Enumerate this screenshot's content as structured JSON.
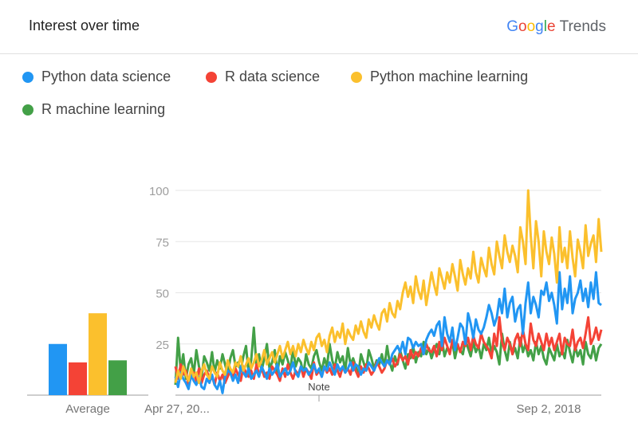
{
  "header": {
    "title": "Interest over time",
    "brand_letters": [
      {
        "ch": "G",
        "color": "#4285F4"
      },
      {
        "ch": "o",
        "color": "#EA4335"
      },
      {
        "ch": "o",
        "color": "#FBBC05"
      },
      {
        "ch": "g",
        "color": "#4285F4"
      },
      {
        "ch": "l",
        "color": "#34A853"
      },
      {
        "ch": "e",
        "color": "#EA4335"
      }
    ],
    "product": "Trends"
  },
  "average_label": "Average",
  "note_label": "Note",
  "chart_data": {
    "type": "line",
    "ylim": [
      0,
      100
    ],
    "yticks": [
      25,
      50,
      75,
      100
    ],
    "x_tick_labels": [
      "Apr 27, 20...",
      "Sep 2, 2018"
    ],
    "grid": true,
    "legend_position": "top",
    "series": [
      {
        "name": "Python data science",
        "color": "#2196F3",
        "average": 25,
        "values": [
          9,
          4,
          11,
          8,
          6,
          3,
          10,
          7,
          5,
          9,
          4,
          3,
          8,
          6,
          10,
          5,
          3,
          7,
          1,
          9,
          12,
          11,
          7,
          10,
          6,
          14,
          11,
          9,
          13,
          8,
          10,
          12,
          9,
          14,
          11,
          8,
          13,
          10,
          12,
          15,
          9,
          11,
          13,
          10,
          12,
          16,
          11,
          9,
          14,
          12,
          13,
          10,
          12,
          15,
          11,
          13,
          9,
          14,
          12,
          16,
          13,
          10,
          15,
          12,
          14,
          11,
          13,
          16,
          12,
          15,
          14,
          10,
          13,
          12,
          16,
          14,
          12,
          15,
          18,
          16,
          14,
          17,
          15,
          20,
          22,
          24,
          21,
          26,
          20,
          28,
          27,
          23,
          26,
          24,
          25,
          20,
          27,
          30,
          32,
          29,
          34,
          36,
          24,
          38,
          30,
          26,
          33,
          22,
          28,
          35,
          33,
          25,
          40,
          35,
          28,
          37,
          32,
          30,
          33,
          38,
          44,
          40,
          34,
          38,
          47,
          40,
          52,
          38,
          45,
          48,
          36,
          42,
          44,
          30,
          45,
          55,
          40,
          48,
          44,
          38,
          51,
          49,
          55,
          46,
          50,
          44,
          35,
          60,
          42,
          52,
          45,
          58,
          40,
          47,
          50,
          56,
          46,
          52,
          43,
          55,
          47,
          60,
          45,
          44
        ]
      },
      {
        "name": "R data science",
        "color": "#F44336",
        "average": 16,
        "values": [
          14,
          8,
          15,
          10,
          12,
          5,
          9,
          11,
          7,
          13,
          6,
          10,
          12,
          8,
          9,
          5,
          11,
          7,
          10,
          6,
          9,
          12,
          8,
          13,
          10,
          7,
          14,
          11,
          9,
          12,
          8,
          15,
          10,
          13,
          9,
          11,
          8,
          14,
          12,
          10,
          7,
          13,
          9,
          15,
          11,
          8,
          12,
          10,
          14,
          9,
          13,
          11,
          8,
          16,
          10,
          12,
          9,
          14,
          11,
          13,
          10,
          15,
          12,
          9,
          14,
          11,
          13,
          10,
          16,
          12,
          9,
          14,
          11,
          15,
          13,
          10,
          12,
          16,
          14,
          11,
          13,
          17,
          15,
          18,
          14,
          16,
          20,
          17,
          19,
          15,
          22,
          18,
          21,
          19,
          23,
          20,
          25,
          22,
          21,
          24,
          19,
          26,
          22,
          28,
          24,
          20,
          27,
          23,
          25,
          21,
          26,
          24,
          28,
          22,
          29,
          25,
          23,
          30,
          26,
          24,
          22,
          18,
          30,
          24,
          38,
          26,
          22,
          28,
          25,
          20,
          27,
          30,
          24,
          32,
          25,
          22,
          35,
          27,
          24,
          30,
          26,
          22,
          30,
          24,
          28,
          22,
          26,
          30,
          20,
          28,
          25,
          24,
          32,
          22,
          26,
          28,
          23,
          30,
          38,
          25,
          28,
          33,
          27,
          32
        ]
      },
      {
        "name": "Python machine learning",
        "color": "#FBC02D",
        "average": 40,
        "values": [
          6,
          12,
          8,
          14,
          10,
          7,
          13,
          9,
          11,
          6,
          12,
          15,
          10,
          8,
          14,
          11,
          9,
          16,
          12,
          10,
          17,
          13,
          11,
          16,
          14,
          19,
          12,
          15,
          18,
          13,
          16,
          20,
          14,
          17,
          22,
          15,
          18,
          21,
          16,
          20,
          24,
          18,
          22,
          26,
          20,
          24,
          19,
          25,
          21,
          27,
          23,
          20,
          26,
          22,
          28,
          30,
          24,
          27,
          21,
          29,
          33,
          26,
          31,
          28,
          35,
          25,
          32,
          29,
          27,
          34,
          30,
          36,
          31,
          28,
          37,
          33,
          39,
          35,
          32,
          40,
          42,
          36,
          45,
          40,
          38,
          46,
          42,
          50,
          55,
          48,
          53,
          45,
          58,
          51,
          47,
          56,
          44,
          52,
          60,
          54,
          49,
          62,
          57,
          52,
          60,
          55,
          64,
          58,
          51,
          66,
          59,
          54,
          62,
          57,
          70,
          60,
          55,
          67,
          62,
          58,
          72,
          64,
          59,
          75,
          68,
          62,
          78,
          70,
          65,
          73,
          68,
          60,
          82,
          75,
          64,
          100,
          78,
          62,
          85,
          75,
          58,
          80,
          70,
          64,
          77,
          69,
          55,
          82,
          65,
          72,
          62,
          80,
          67,
          58,
          76,
          70,
          62,
          83,
          68,
          74,
          78,
          65,
          86,
          70
        ]
      },
      {
        "name": "R machine learning",
        "color": "#43A047",
        "average": 17,
        "values": [
          5,
          28,
          12,
          20,
          8,
          15,
          18,
          10,
          22,
          14,
          9,
          19,
          16,
          12,
          21,
          11,
          17,
          13,
          20,
          15,
          10,
          18,
          22,
          14,
          16,
          12,
          19,
          24,
          11,
          17,
          33,
          14,
          20,
          12,
          18,
          25,
          13,
          16,
          22,
          11,
          19,
          15,
          21,
          17,
          12,
          23,
          14,
          18,
          16,
          10,
          20,
          15,
          13,
          19,
          22,
          16,
          12,
          18,
          14,
          25,
          17,
          13,
          21,
          16,
          19,
          12,
          23,
          15,
          18,
          14,
          10,
          20,
          16,
          12,
          22,
          18,
          13,
          17,
          15,
          20,
          14,
          24,
          16,
          12,
          19,
          15,
          22,
          17,
          13,
          20,
          18,
          24,
          16,
          21,
          19,
          26,
          20,
          23,
          18,
          22,
          25,
          20,
          27,
          19,
          23,
          21,
          26,
          18,
          24,
          22,
          20,
          27,
          23,
          19,
          26,
          21,
          24,
          18,
          25,
          22,
          28,
          20,
          24,
          21,
          15,
          30,
          22,
          17,
          26,
          20,
          23,
          18,
          28,
          21,
          25,
          19,
          22,
          17,
          26,
          20,
          24,
          18,
          15,
          23,
          20,
          17,
          25,
          19,
          22,
          18,
          27,
          21,
          16,
          24,
          19,
          22,
          15,
          26,
          20,
          18,
          24,
          17,
          23,
          25
        ]
      }
    ]
  }
}
